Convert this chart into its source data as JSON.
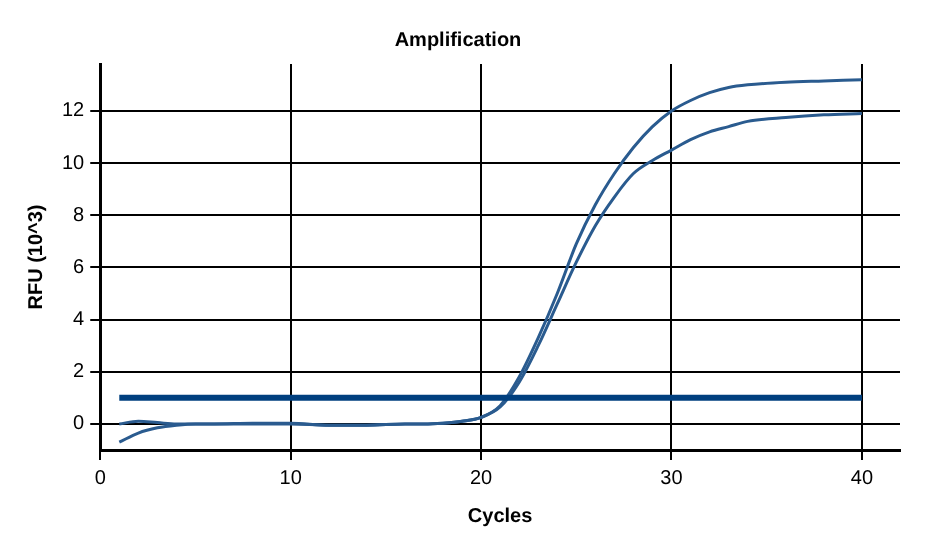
{
  "chart_data": {
    "type": "line",
    "title": "Amplification",
    "xlabel": "Cycles",
    "ylabel": "RFU (10^3)",
    "series": [
      {
        "color": "#2a5b8f",
        "x": [
          1,
          2,
          3,
          4,
          5,
          6,
          8,
          10,
          12,
          14,
          16,
          17,
          18,
          19,
          20,
          21,
          22,
          23,
          24,
          25,
          26,
          27,
          28,
          29,
          30,
          31,
          32,
          33,
          34,
          36,
          38,
          40
        ],
        "values": [
          0.0,
          0.1,
          0.05,
          0.0,
          0.0,
          0.0,
          0.0,
          0.0,
          -0.05,
          -0.05,
          0.0,
          0.0,
          0.03,
          0.1,
          0.25,
          0.7,
          1.8,
          3.3,
          5.0,
          6.9,
          8.4,
          9.6,
          10.6,
          11.4,
          12.0,
          12.4,
          12.7,
          12.9,
          13.0,
          13.1,
          13.15,
          13.2
        ]
      },
      {
        "color": "#2a5b8f",
        "x": [
          1,
          2,
          3,
          4,
          5,
          6,
          8,
          10,
          12,
          14,
          16,
          17,
          18,
          19,
          20,
          21,
          22,
          23,
          24,
          25,
          26,
          27,
          28,
          29,
          30,
          31,
          32,
          33,
          34,
          36,
          38,
          40
        ],
        "values": [
          -0.7,
          -0.35,
          -0.15,
          -0.05,
          0.0,
          0.0,
          0.03,
          0.03,
          -0.05,
          -0.05,
          0.0,
          0.0,
          0.03,
          0.1,
          0.25,
          0.65,
          1.6,
          3.0,
          4.6,
          6.2,
          7.6,
          8.7,
          9.6,
          10.1,
          10.5,
          10.9,
          11.2,
          11.4,
          11.6,
          11.75,
          11.85,
          11.9
        ]
      }
    ],
    "ref_lines": [
      {
        "axis": "y",
        "value": 1,
        "color": "#003f7f"
      }
    ],
    "xlim": [
      0,
      42
    ],
    "xticks": [
      0,
      10,
      20,
      30,
      40
    ],
    "ylim": [
      -1,
      13.8
    ],
    "yticks": [
      0,
      2,
      4,
      6,
      8,
      10,
      12
    ],
    "grid": true,
    "legend": false,
    "marker": "none",
    "line_style": "solid"
  }
}
